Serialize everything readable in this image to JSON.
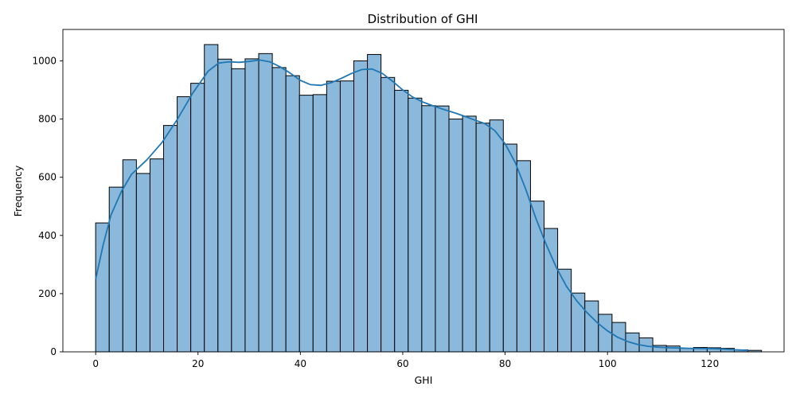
{
  "chart_data": {
    "type": "bar",
    "title": "Distribution of GHI",
    "xlabel": "GHI",
    "ylabel": "Frequency",
    "xlim": [
      -6.4,
      134.5
    ],
    "ylim": [
      0,
      1108
    ],
    "xticks": [
      0,
      20,
      40,
      60,
      80,
      100,
      120
    ],
    "yticks": [
      0,
      200,
      400,
      600,
      800,
      1000
    ],
    "bin_start": 0,
    "bin_width": 2.655,
    "bar_color": "#8bb9db",
    "edge_color": "#000000",
    "kde_color": "#1f77b4",
    "grid": false,
    "values": [
      443,
      566,
      660,
      613,
      663,
      778,
      877,
      923,
      1056,
      1006,
      973,
      1007,
      1025,
      977,
      949,
      882,
      884,
      930,
      931,
      1000,
      1022,
      943,
      899,
      872,
      846,
      845,
      800,
      810,
      786,
      797,
      714,
      657,
      518,
      424,
      284,
      202,
      175,
      129,
      101,
      65,
      48,
      22,
      20,
      12,
      15,
      14,
      12,
      7,
      5
    ],
    "kde": [
      [
        0,
        250
      ],
      [
        1.5,
        370
      ],
      [
        3,
        470
      ],
      [
        5,
        550
      ],
      [
        7,
        610
      ],
      [
        10,
        660
      ],
      [
        13,
        720
      ],
      [
        16,
        800
      ],
      [
        19,
        890
      ],
      [
        22,
        965
      ],
      [
        24,
        992
      ],
      [
        26,
        997
      ],
      [
        28,
        995
      ],
      [
        30,
        998
      ],
      [
        32,
        1003
      ],
      [
        34,
        997
      ],
      [
        36,
        980
      ],
      [
        38,
        958
      ],
      [
        40,
        933
      ],
      [
        42,
        918
      ],
      [
        44,
        916
      ],
      [
        46,
        925
      ],
      [
        48,
        940
      ],
      [
        50,
        957
      ],
      [
        52,
        970
      ],
      [
        54,
        972
      ],
      [
        56,
        957
      ],
      [
        58,
        930
      ],
      [
        60,
        900
      ],
      [
        62,
        875
      ],
      [
        64,
        858
      ],
      [
        66,
        845
      ],
      [
        68,
        833
      ],
      [
        70,
        822
      ],
      [
        72,
        810
      ],
      [
        74,
        797
      ],
      [
        76,
        785
      ],
      [
        78,
        760
      ],
      [
        80,
        715
      ],
      [
        82,
        650
      ],
      [
        84,
        560
      ],
      [
        86,
        460
      ],
      [
        88,
        370
      ],
      [
        90,
        290
      ],
      [
        92,
        225
      ],
      [
        94,
        175
      ],
      [
        96,
        135
      ],
      [
        98,
        100
      ],
      [
        100,
        72
      ],
      [
        102,
        50
      ],
      [
        104,
        35
      ],
      [
        106,
        25
      ],
      [
        108,
        19
      ],
      [
        110,
        16
      ],
      [
        112,
        14
      ],
      [
        114,
        13
      ],
      [
        116,
        12
      ],
      [
        118,
        11.5
      ],
      [
        120,
        11
      ],
      [
        122,
        10
      ],
      [
        124,
        8
      ],
      [
        126,
        6
      ],
      [
        127.5,
        5
      ]
    ]
  }
}
